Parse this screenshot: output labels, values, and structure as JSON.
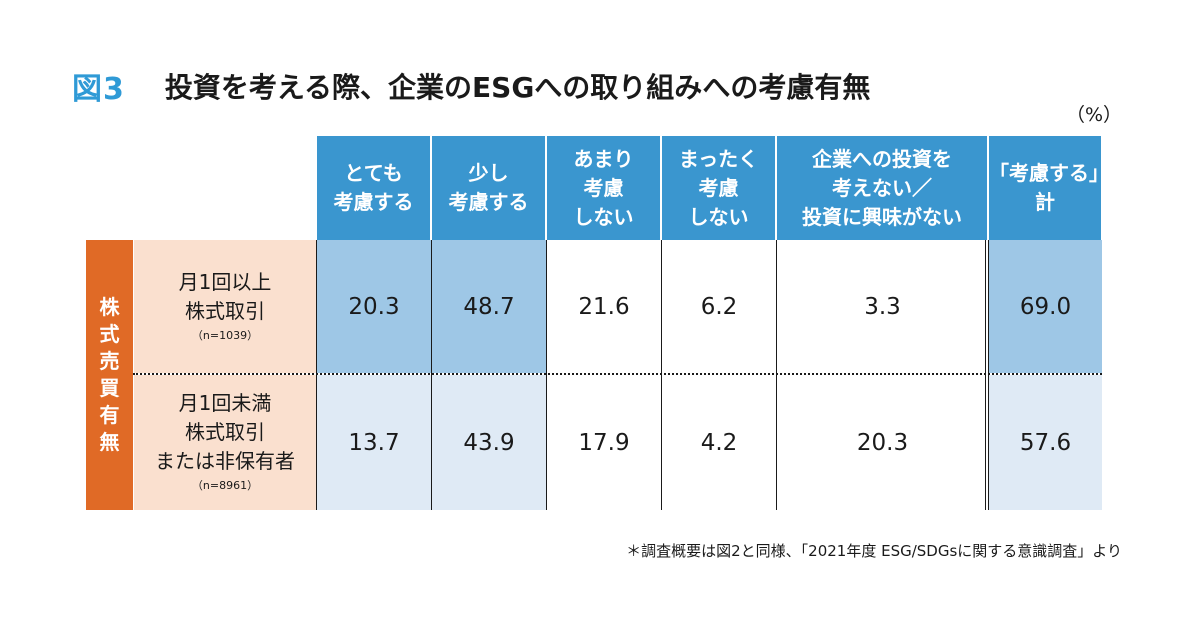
{
  "figure_label": "図3",
  "title": "投資を考える際、企業のESGへの取り組みへの考慮有無",
  "unit": "（%）",
  "note": "＊調査概要は図2と同様、「2021年度 ESG/SDGsに関する意識調査」より",
  "side_label": [
    "株",
    "式",
    "売",
    "買",
    "有",
    "無"
  ],
  "columns": [
    [
      "とても",
      "考慮する"
    ],
    [
      "少し",
      "考慮する"
    ],
    [
      "あまり",
      "考慮",
      "しない"
    ],
    [
      "まったく",
      "考慮",
      "しない"
    ],
    [
      "企業への投資を",
      "考えない／",
      "投資に興味がない"
    ],
    [
      "「考慮する」",
      "計"
    ]
  ],
  "rows": [
    {
      "label": [
        "月1回以上",
        "株式取引"
      ],
      "n": "（n=1039）",
      "values": [
        "20.3",
        "48.7",
        "21.6",
        "6.2",
        "3.3",
        "69.0"
      ]
    },
    {
      "label": [
        "月1回未満",
        "株式取引",
        "または非保有者"
      ],
      "n": "（n=8961）",
      "values": [
        "13.7",
        "43.9",
        "17.9",
        "4.2",
        "20.3",
        "57.6"
      ]
    }
  ],
  "colors": {
    "accent": "#2f9ad6",
    "header": "#3a96cf",
    "side": "#e06a26",
    "row_label": "#fae0cf",
    "highlight_dark": "#9ec7e6",
    "highlight_light": "#dfeaf5"
  },
  "chart_data": {
    "type": "table",
    "title": "投資を考える際、企業のESGへの取り組みへの考慮有無",
    "row_group": "株式売買有無",
    "columns": [
      "とても考慮する",
      "少し考慮する",
      "あまり考慮しない",
      "まったく考慮しない",
      "企業への投資を考えない／投資に興味がない",
      "「考慮する」計"
    ],
    "rows": [
      {
        "name": "月1回以上株式取引",
        "n": 1039,
        "values": [
          20.3,
          48.7,
          21.6,
          6.2,
          3.3,
          69.0
        ]
      },
      {
        "name": "月1回未満株式取引または非保有者",
        "n": 8961,
        "values": [
          13.7,
          43.9,
          17.9,
          4.2,
          20.3,
          57.6
        ]
      }
    ]
  }
}
